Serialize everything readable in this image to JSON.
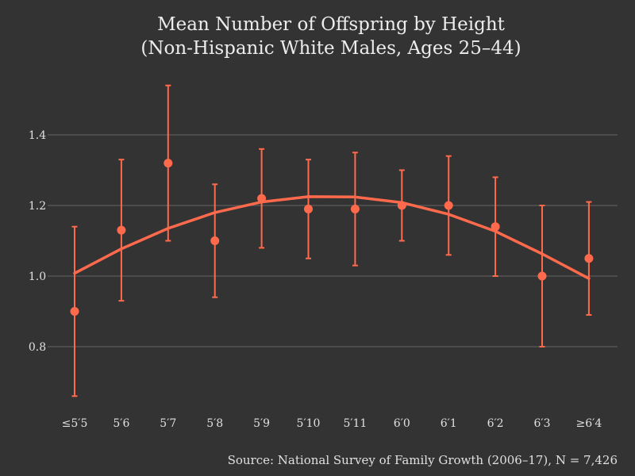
{
  "chart_data": {
    "type": "scatter",
    "title_lines": [
      "Mean Number of Offspring by Height",
      "(Non-Hispanic White Males, Ages 25–44)"
    ],
    "xlabel": "",
    "ylabel": "",
    "categories": [
      "≤5′5",
      "5′6",
      "5′7",
      "5′8",
      "5′9",
      "5′10",
      "5′11",
      "6′0",
      "6′1",
      "6′2",
      "6′3",
      "≥6′4"
    ],
    "values": [
      0.9,
      1.13,
      1.32,
      1.1,
      1.22,
      1.19,
      1.19,
      1.2,
      1.2,
      1.14,
      1.0,
      1.05
    ],
    "lower": [
      0.66,
      0.93,
      1.1,
      0.94,
      1.08,
      1.05,
      1.03,
      1.1,
      1.06,
      1.0,
      0.8,
      0.89
    ],
    "upper": [
      1.14,
      1.33,
      1.54,
      1.26,
      1.36,
      1.33,
      1.35,
      1.3,
      1.34,
      1.28,
      1.2,
      1.21
    ],
    "fit_curve": [
      1.008,
      1.077,
      1.135,
      1.18,
      1.21,
      1.225,
      1.224,
      1.208,
      1.175,
      1.127,
      1.063,
      0.993
    ],
    "yticks": [
      "0.8",
      "1.0",
      "1.2",
      "1.4"
    ],
    "ylim": [
      0.62,
      1.58
    ],
    "grid": true,
    "source": "Source: National Survey of Family Growth (2006–17), N = 7,426",
    "colors": {
      "background": "#333333",
      "accent": "#ff6a4d",
      "grid": "#555555",
      "text": "#e0e0e0"
    }
  }
}
